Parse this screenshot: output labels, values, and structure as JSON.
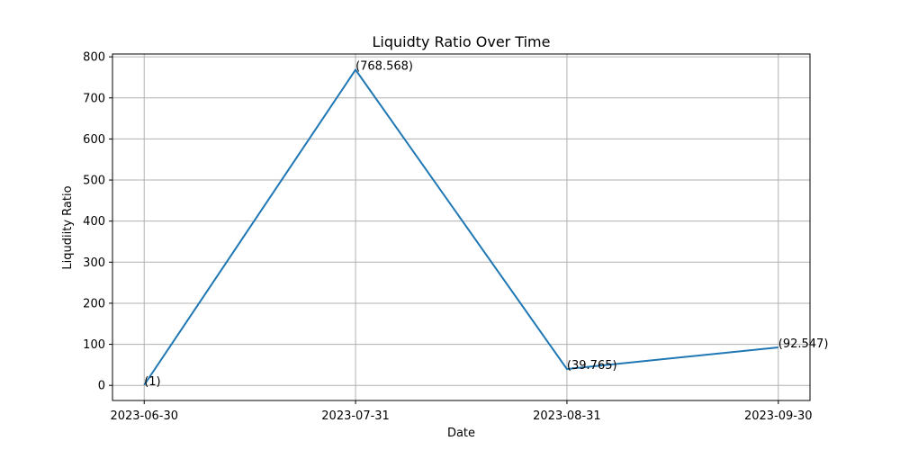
{
  "chart_data": {
    "type": "line",
    "title": "Liquidty Ratio Over Time",
    "xlabel": "Date",
    "ylabel": "Liqudiity Ratio",
    "x": [
      "2023-06-30",
      "2023-07-31",
      "2023-08-31",
      "2023-09-30"
    ],
    "series": [
      {
        "values": [
          1,
          768.568,
          39.765,
          92.547
        ],
        "color": "#1f77b4"
      }
    ],
    "data_labels": [
      "(1)",
      "(768.568)",
      "(39.765)",
      "(92.547)"
    ],
    "x_ticks": [
      "2023-06-30",
      "2023-07-31",
      "2023-08-31",
      "2023-09-30"
    ],
    "y_ticks": [
      0,
      100,
      200,
      300,
      400,
      500,
      600,
      700,
      800
    ],
    "ylim": [
      -36.8,
      806.9
    ],
    "grid": true,
    "legend": false
  }
}
